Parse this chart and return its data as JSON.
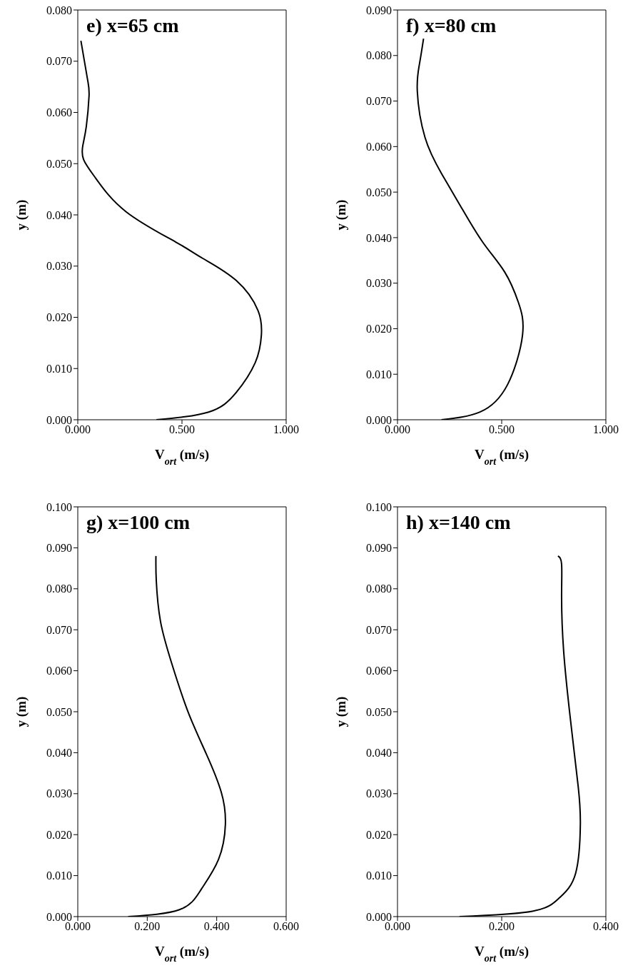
{
  "chart_data": [
    {
      "type": "line",
      "title": "e) x=65 cm",
      "xlabel": "V$_{ort}$ (m/s)",
      "ylabel": "y (m)",
      "color": "#000000",
      "marker": "none",
      "x": [
        0.377,
        0.628,
        0.76,
        0.852,
        0.881,
        0.865,
        0.76,
        0.6,
        0.47,
        0.232,
        0.087,
        0.028,
        0.024,
        0.041,
        0.054,
        0.047,
        0.015
      ],
      "values": [
        0,
        0.0015,
        0.0053,
        0.0112,
        0.0165,
        0.0213,
        0.0272,
        0.0315,
        0.0347,
        0.0406,
        0.0471,
        0.0508,
        0.0535,
        0.0573,
        0.0632,
        0.0664,
        0.074
      ],
      "xlim": [
        0,
        1
      ],
      "xticks": [
        {
          "value": 0,
          "label": "0.000"
        },
        {
          "value": 0.5,
          "label": "0.500"
        },
        {
          "value": 1,
          "label": "1.000"
        }
      ],
      "ylim": [
        0,
        0.08
      ],
      "yticks": [
        {
          "value": 0,
          "label": "0.000"
        },
        {
          "value": 0.01,
          "label": "0.010"
        },
        {
          "value": 0.02,
          "label": "0.020"
        },
        {
          "value": 0.03,
          "label": "0.030"
        },
        {
          "value": 0.04,
          "label": "0.040"
        },
        {
          "value": 0.05,
          "label": "0.050"
        },
        {
          "value": 0.06,
          "label": "0.060"
        },
        {
          "value": 0.07,
          "label": "0.070"
        },
        {
          "value": 0.08,
          "label": "0.080"
        }
      ]
    },
    {
      "type": "line",
      "title": "f) x=80 cm",
      "xlabel": "V$_{ort}$ (m/s)",
      "ylabel": "y (m)",
      "color": "#000000",
      "marker": "none",
      "x": [
        0.211,
        0.396,
        0.528,
        0.6,
        0.58,
        0.515,
        0.409,
        0.303,
        0.211,
        0.132,
        0.095,
        0.106,
        0.125
      ],
      "values": [
        0,
        0.0017,
        0.0077,
        0.0186,
        0.0258,
        0.0324,
        0.039,
        0.0469,
        0.0541,
        0.062,
        0.0722,
        0.0783,
        0.0837
      ],
      "xlim": [
        0,
        1
      ],
      "xticks": [
        {
          "value": 0,
          "label": "0.000"
        },
        {
          "value": 0.5,
          "label": "0.500"
        },
        {
          "value": 1,
          "label": "1.000"
        }
      ],
      "ylim": [
        0,
        0.09
      ],
      "yticks": [
        {
          "value": 0,
          "label": "0.000"
        },
        {
          "value": 0.01,
          "label": "0.010"
        },
        {
          "value": 0.02,
          "label": "0.020"
        },
        {
          "value": 0.03,
          "label": "0.030"
        },
        {
          "value": 0.04,
          "label": "0.040"
        },
        {
          "value": 0.05,
          "label": "0.050"
        },
        {
          "value": 0.06,
          "label": "0.060"
        },
        {
          "value": 0.07,
          "label": "0.070"
        },
        {
          "value": 0.08,
          "label": "0.080"
        },
        {
          "value": 0.09,
          "label": "0.090"
        }
      ]
    },
    {
      "type": "line",
      "title": "g) x=100 cm",
      "xlabel": "V$_{ort}$ (m/s)",
      "ylabel": "y (m)",
      "color": "#000000",
      "marker": "none",
      "x": [
        0.145,
        0.293,
        0.355,
        0.405,
        0.425,
        0.413,
        0.37,
        0.316,
        0.269,
        0.238,
        0.226,
        0.225
      ],
      "values": [
        0,
        0.0017,
        0.0066,
        0.0139,
        0.0225,
        0.0304,
        0.0397,
        0.0503,
        0.0622,
        0.0721,
        0.082,
        0.088
      ],
      "xlim": [
        0,
        0.6
      ],
      "xticks": [
        {
          "value": 0,
          "label": "0.000"
        },
        {
          "value": 0.2,
          "label": "0.200"
        },
        {
          "value": 0.4,
          "label": "0.400"
        },
        {
          "value": 0.6,
          "label": "0.600"
        }
      ],
      "ylim": [
        0,
        0.1
      ],
      "yticks": [
        {
          "value": 0,
          "label": "0.000"
        },
        {
          "value": 0.01,
          "label": "0.010"
        },
        {
          "value": 0.02,
          "label": "0.020"
        },
        {
          "value": 0.03,
          "label": "0.030"
        },
        {
          "value": 0.04,
          "label": "0.040"
        },
        {
          "value": 0.05,
          "label": "0.050"
        },
        {
          "value": 0.06,
          "label": "0.060"
        },
        {
          "value": 0.07,
          "label": "0.070"
        },
        {
          "value": 0.08,
          "label": "0.080"
        },
        {
          "value": 0.09,
          "label": "0.090"
        },
        {
          "value": 0.1,
          "label": "0.100"
        }
      ]
    },
    {
      "type": "line",
      "title": "h) x=140 cm",
      "xlabel": "V$_{ort}$ (m/s)",
      "ylabel": "y (m)",
      "color": "#000000",
      "marker": "none",
      "x": [
        0.119,
        0.259,
        0.311,
        0.342,
        0.351,
        0.347,
        0.332,
        0.319,
        0.315,
        0.315,
        0.308
      ],
      "values": [
        0,
        0.0013,
        0.0046,
        0.0106,
        0.0225,
        0.0316,
        0.0481,
        0.0647,
        0.078,
        0.086,
        0.088
      ],
      "xlim": [
        0,
        0.4
      ],
      "xticks": [
        {
          "value": 0,
          "label": "0.000"
        },
        {
          "value": 0.2,
          "label": "0.200"
        },
        {
          "value": 0.4,
          "label": "0.400"
        }
      ],
      "ylim": [
        0,
        0.1
      ],
      "yticks": [
        {
          "value": 0,
          "label": "0.000"
        },
        {
          "value": 0.01,
          "label": "0.010"
        },
        {
          "value": 0.02,
          "label": "0.020"
        },
        {
          "value": 0.03,
          "label": "0.030"
        },
        {
          "value": 0.04,
          "label": "0.040"
        },
        {
          "value": 0.05,
          "label": "0.050"
        },
        {
          "value": 0.06,
          "label": "0.060"
        },
        {
          "value": 0.07,
          "label": "0.070"
        },
        {
          "value": 0.08,
          "label": "0.080"
        },
        {
          "value": 0.09,
          "label": "0.090"
        },
        {
          "value": 0.1,
          "label": "0.100"
        }
      ]
    }
  ]
}
